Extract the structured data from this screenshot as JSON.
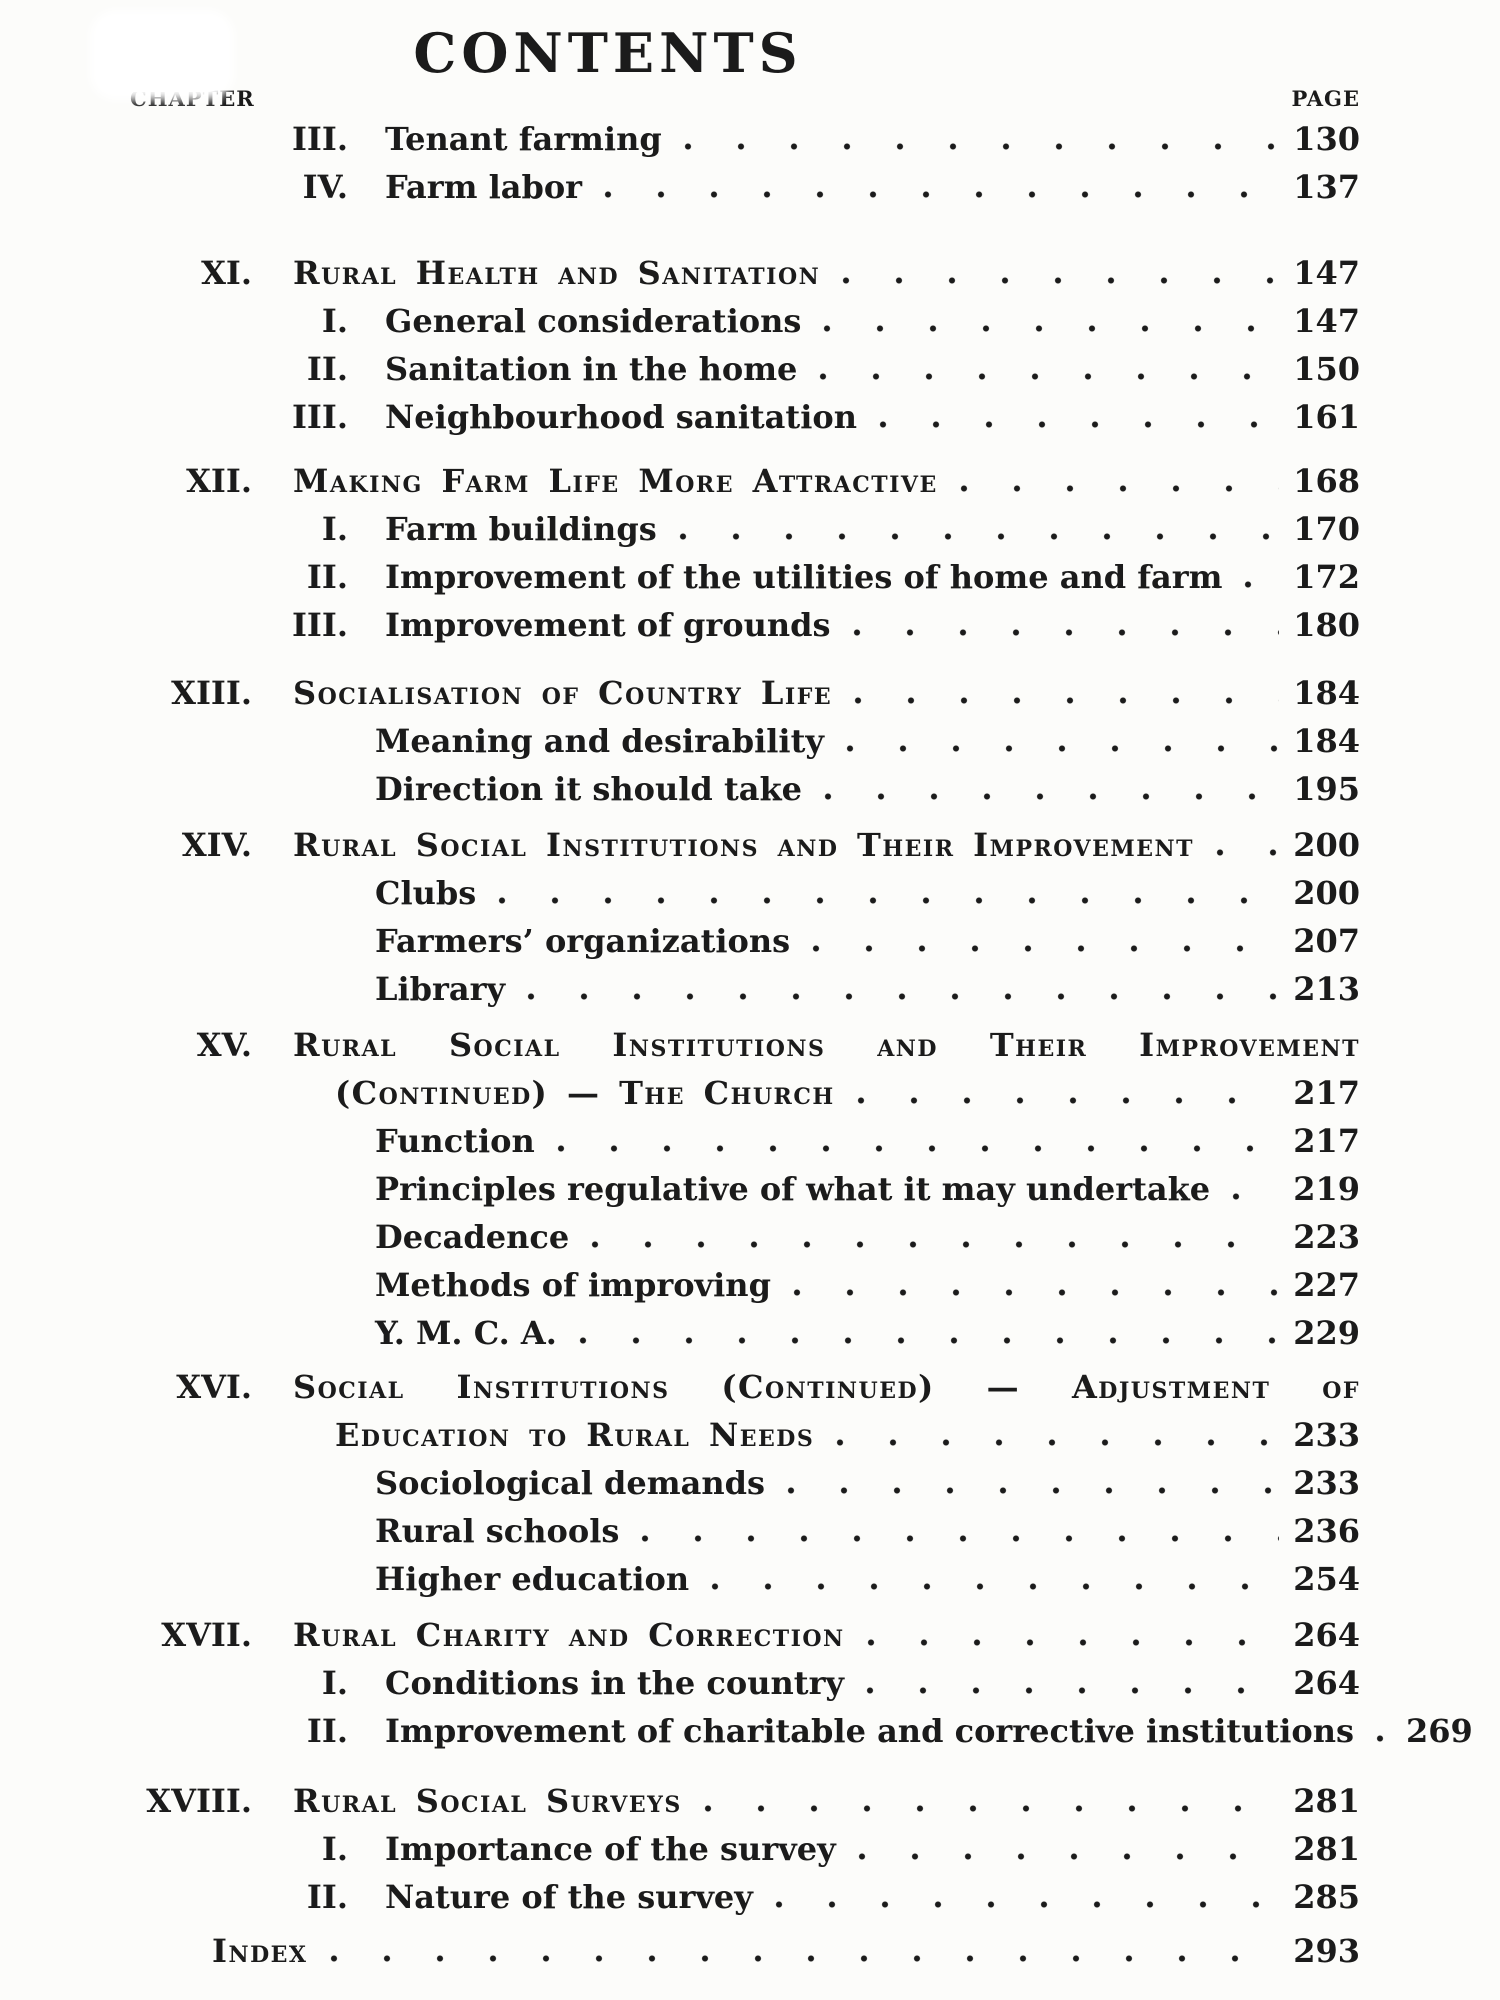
{
  "header": {
    "title": "CONTENTS",
    "chapter_label": "CHAPTER",
    "page_label": "PAGE"
  },
  "colors": {
    "ink": "#1b1b1b",
    "paper": "#fcfcfa"
  },
  "toc": {
    "sections": [
      {
        "rows": [
          {
            "style": "sub",
            "num": "III.",
            "text": "Tenant farming",
            "page": "130"
          },
          {
            "style": "sub",
            "num": "IV.",
            "text": "Farm labor",
            "page": "137"
          }
        ]
      },
      {
        "rows": [
          {
            "style": "chapter",
            "num": "XI.",
            "text": "Rural Health and Sanitation",
            "page": "147"
          },
          {
            "style": "sub",
            "num": "I.",
            "text": "General considerations",
            "page": "147"
          },
          {
            "style": "sub",
            "num": "II.",
            "text": "Sanitation in the home",
            "page": "150"
          },
          {
            "style": "sub",
            "num": "III.",
            "text": "Neighbourhood sanitation",
            "page": "161"
          }
        ]
      },
      {
        "rows": [
          {
            "style": "chapter",
            "num": "XII.",
            "text": "Making Farm Life More Attractive",
            "page": "168"
          },
          {
            "style": "sub",
            "num": "I.",
            "text": "Farm buildings",
            "page": "170"
          },
          {
            "style": "sub",
            "num": "II.",
            "text": "Improvement of the utilities of home and farm",
            "page": "172"
          },
          {
            "style": "sub",
            "num": "III.",
            "text": "Improvement of grounds",
            "page": "180"
          }
        ]
      },
      {
        "rows": [
          {
            "style": "chapter",
            "num": "XIII.",
            "text": "Socialisation of Country Life",
            "page": "184"
          },
          {
            "style": "plain",
            "text": "Meaning and desirability",
            "page": "184"
          },
          {
            "style": "plain",
            "text": "Direction it should take",
            "page": "195"
          }
        ]
      },
      {
        "rows": [
          {
            "style": "chapter",
            "num": "XIV.",
            "text": "Rural Social Institutions and Their Improvement",
            "page": "200"
          },
          {
            "style": "plain",
            "text": "Clubs",
            "page": "200"
          },
          {
            "style": "plain",
            "text": "Farmers’ organizations",
            "page": "207"
          },
          {
            "style": "plain",
            "text": "Library",
            "page": "213"
          }
        ]
      },
      {
        "rows": [
          {
            "style": "chapter2",
            "num": "XV.",
            "line1": "Rural Social Institutions and Their Improvement",
            "line2": "(Continued) — The Church",
            "page": "217"
          },
          {
            "style": "plain",
            "text": "Function",
            "page": "217"
          },
          {
            "style": "plain",
            "text": "Principles regulative of what it may undertake",
            "page": "219"
          },
          {
            "style": "plain",
            "text": "Decadence",
            "page": "223"
          },
          {
            "style": "plain",
            "text": "Methods of improving",
            "page": "227"
          },
          {
            "style": "plain",
            "text": "Y. M. C. A.",
            "page": "229"
          }
        ]
      },
      {
        "rows": [
          {
            "style": "chapter2",
            "num": "XVI.",
            "line1": "Social Institutions (Continued) — Adjustment of",
            "line2": "Education to Rural Needs",
            "page": "233"
          },
          {
            "style": "plain",
            "text": "Sociological demands",
            "page": "233"
          },
          {
            "style": "plain",
            "text": "Rural schools",
            "page": "236"
          },
          {
            "style": "plain",
            "text": "Higher education",
            "page": "254"
          }
        ]
      },
      {
        "rows": [
          {
            "style": "chapter",
            "num": "XVII.",
            "text": "Rural Charity and Correction",
            "page": "264"
          },
          {
            "style": "sub",
            "num": "I.",
            "text": "Conditions in the country",
            "page": "264"
          },
          {
            "style": "sub",
            "num": "II.",
            "text": "Improvement of charitable and corrective institutions",
            "page": "269"
          }
        ]
      },
      {
        "rows": [
          {
            "style": "chapter",
            "num": "XVIII.",
            "text": "Rural Social Surveys",
            "page": "281"
          },
          {
            "style": "sub",
            "num": "I.",
            "text": "Importance of the survey",
            "page": "281"
          },
          {
            "style": "sub",
            "num": "II.",
            "text": "Nature of the survey",
            "page": "285"
          }
        ]
      },
      {
        "rows": [
          {
            "style": "index",
            "text": "Index",
            "page": "293"
          }
        ]
      }
    ]
  }
}
